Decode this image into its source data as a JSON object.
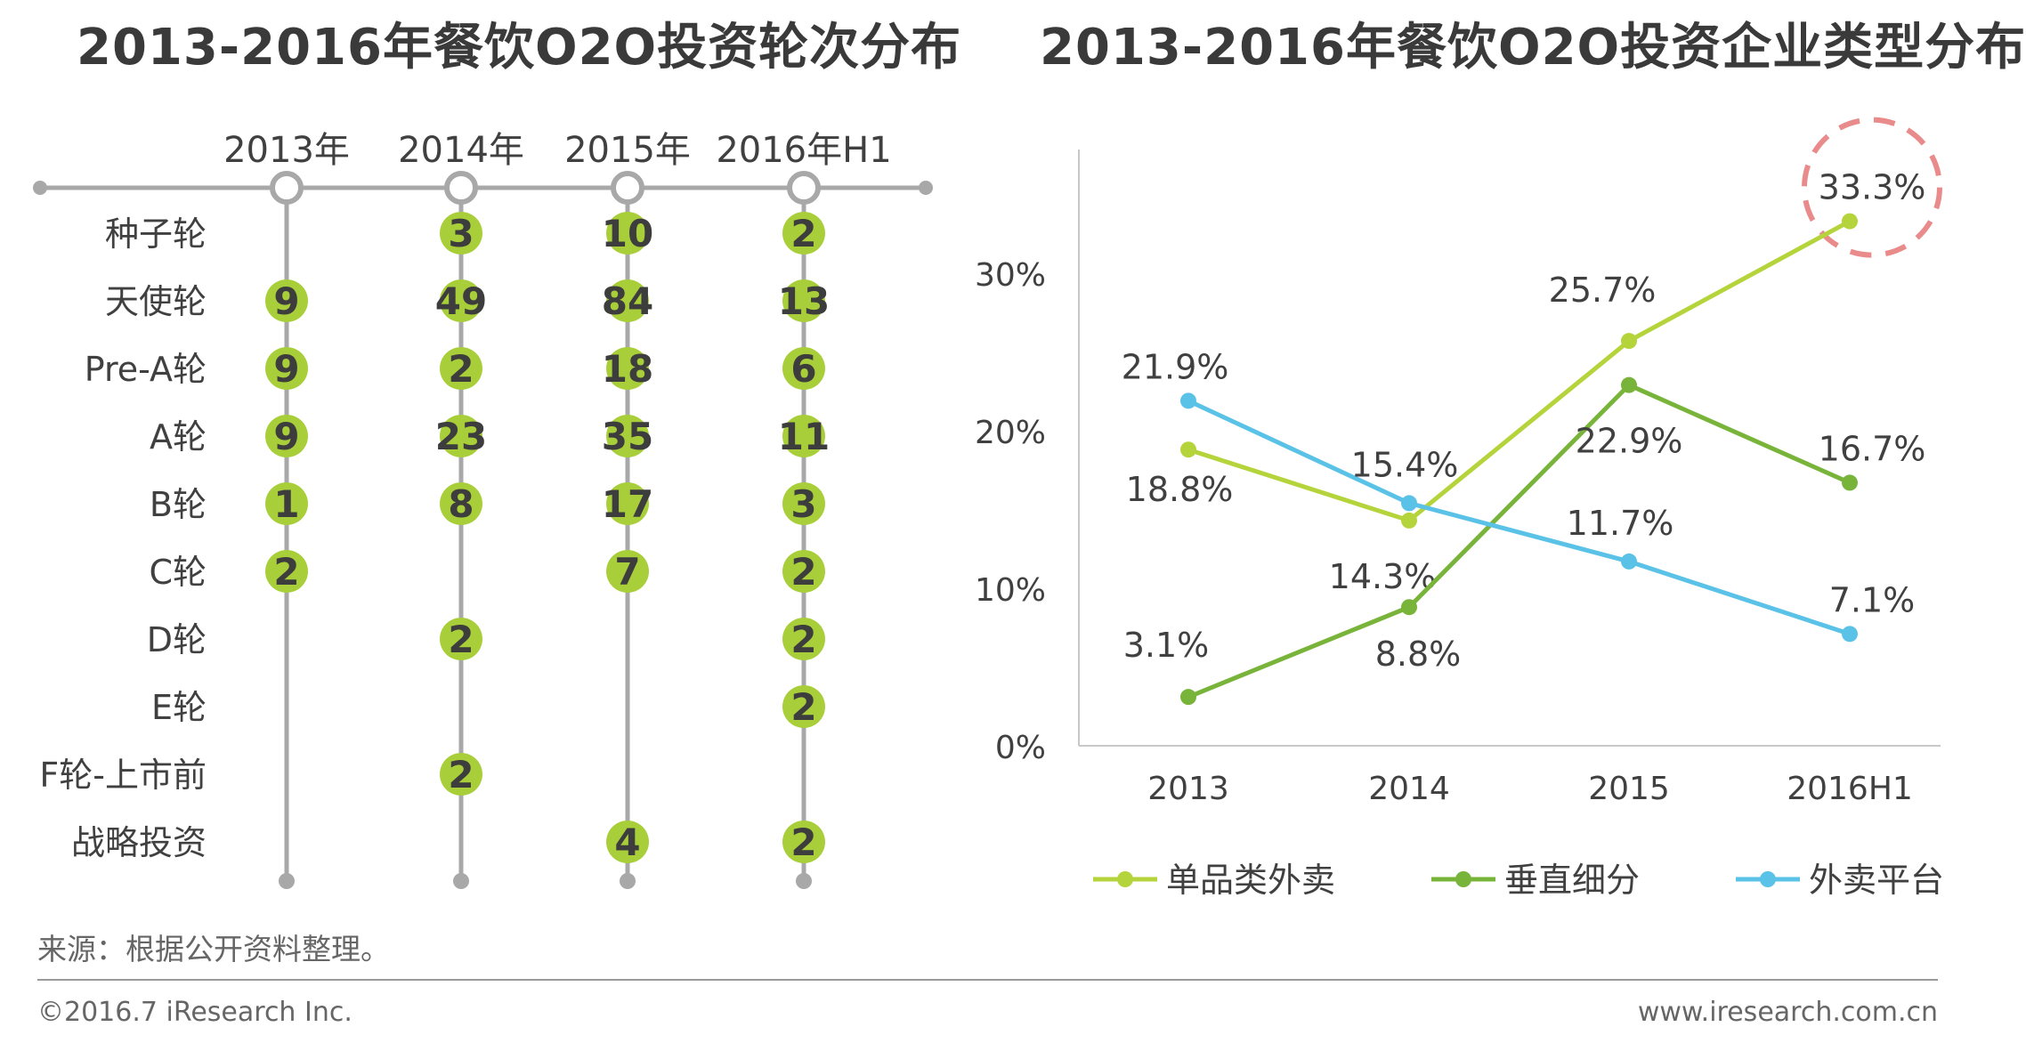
{
  "left_title": "2013-2016年餐饮O2O投资轮次分布",
  "right_title": "2013-2016年餐饮O2O投资企业类型分布",
  "source_note": "来源：根据公开资料整理。",
  "copyright": "©2016.7 iResearch Inc.",
  "website": "www.iresearch.com.cn",
  "colors": {
    "bubble": "#a8cf3a",
    "timeline": "#a8a8a8",
    "danpin": "#b5d43b",
    "chuizhi": "#79b43a",
    "waimai": "#5bc2e7",
    "highlight": "#e98b8b"
  },
  "chart_data": [
    {
      "type": "table",
      "title": "2013-2016年餐饮O2O投资轮次分布",
      "columns": [
        "2013年",
        "2014年",
        "2015年",
        "2016年H1"
      ],
      "rows": [
        "种子轮",
        "天使轮",
        "Pre-A轮",
        "A轮",
        "B轮",
        "C轮",
        "D轮",
        "E轮",
        "F轮-上市前",
        "战略投资"
      ],
      "values": [
        [
          null,
          3,
          10,
          2
        ],
        [
          9,
          49,
          84,
          13
        ],
        [
          9,
          2,
          18,
          6
        ],
        [
          9,
          23,
          35,
          11
        ],
        [
          1,
          8,
          17,
          3
        ],
        [
          2,
          null,
          7,
          2
        ],
        [
          null,
          2,
          null,
          2
        ],
        [
          null,
          null,
          null,
          2
        ],
        [
          null,
          2,
          null,
          null
        ],
        [
          null,
          null,
          4,
          2
        ]
      ]
    },
    {
      "type": "line",
      "title": "2013-2016年餐饮O2O投资企业类型分布",
      "categories": [
        "2013",
        "2014",
        "2015",
        "2016H1"
      ],
      "ylim": [
        0,
        38
      ],
      "yticks": [
        0,
        10,
        20,
        30
      ],
      "ytick_labels": [
        "0%",
        "10%",
        "20%",
        "30%"
      ],
      "legend_position": "bottom",
      "series": [
        {
          "name": "单品类外卖",
          "color_key": "danpin",
          "values": [
            18.8,
            14.3,
            25.7,
            33.3
          ],
          "labels": [
            "18.8%",
            "14.3%",
            "25.7%",
            "33.3%"
          ]
        },
        {
          "name": "垂直细分",
          "color_key": "chuizhi",
          "values": [
            3.1,
            8.8,
            22.9,
            16.7
          ],
          "labels": [
            "3.1%",
            "8.8%",
            "22.9%",
            "16.7%"
          ]
        },
        {
          "name": "外卖平台",
          "color_key": "waimai",
          "values": [
            21.9,
            15.4,
            11.7,
            7.1
          ],
          "labels": [
            "21.9%",
            "15.4%",
            "11.7%",
            "7.1%"
          ]
        }
      ],
      "highlight": {
        "series": 0,
        "point": 3
      }
    }
  ]
}
